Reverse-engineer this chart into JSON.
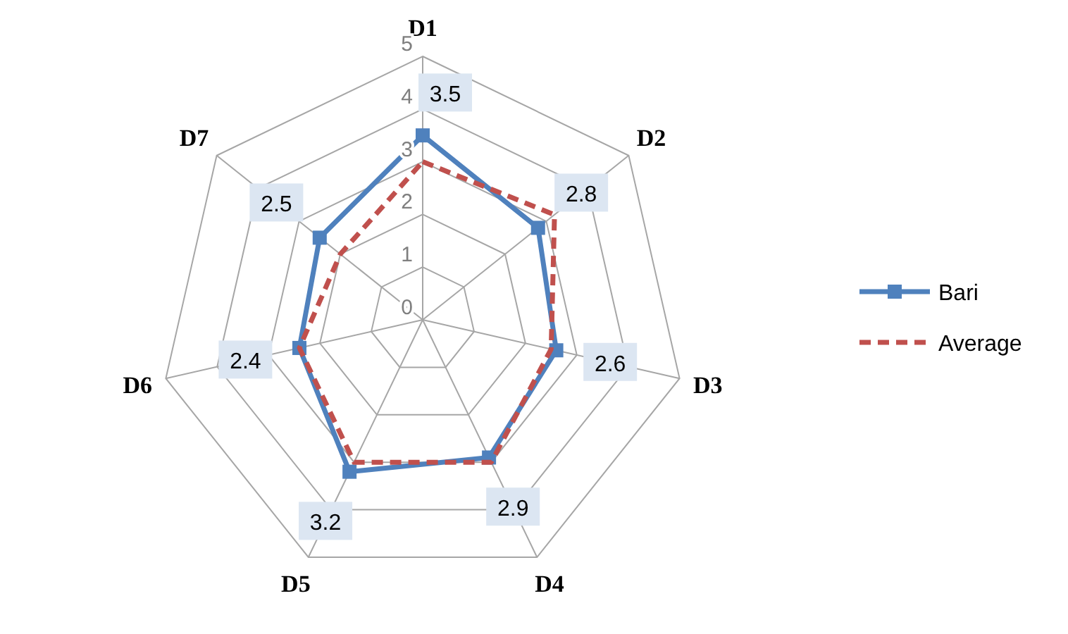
{
  "chart_data": {
    "type": "radar",
    "categories": [
      "D1",
      "D2",
      "D3",
      "D4",
      "D5",
      "D6",
      "D7"
    ],
    "ylim": [
      0,
      5
    ],
    "yticks": [
      0,
      1,
      2,
      3,
      4,
      5
    ],
    "grid": true,
    "legend": "right",
    "series": [
      {
        "name": "Bari",
        "color": "#4f81bd",
        "values": [
          3.5,
          2.8,
          2.6,
          2.9,
          3.2,
          2.4,
          2.5
        ],
        "marker": "square",
        "line_style": "solid",
        "value_labels": [
          "3.5",
          "2.8",
          "2.6",
          "2.9",
          "3.2",
          "2.4",
          "2.5"
        ]
      },
      {
        "name": "Average",
        "color": "#c0504d",
        "values": [
          3.0,
          3.2,
          2.5,
          3.0,
          3.0,
          2.4,
          2.0
        ],
        "marker": "none",
        "line_style": "dashed"
      }
    ]
  }
}
